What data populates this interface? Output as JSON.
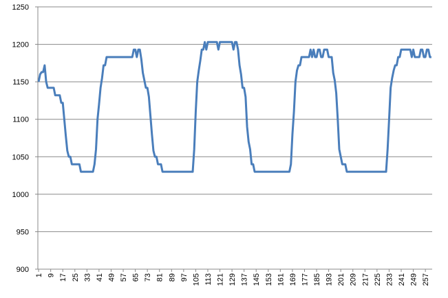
{
  "chart_data": {
    "type": "line",
    "color": "#4a7ebb",
    "grid": true,
    "xlim": [
      0.5,
      261.5
    ],
    "xticks": [
      1,
      9,
      17,
      25,
      33,
      41,
      49,
      57,
      65,
      73,
      81,
      89,
      97,
      105,
      113,
      121,
      129,
      137,
      145,
      153,
      161,
      169,
      177,
      185,
      193,
      201,
      209,
      217,
      225,
      233,
      241,
      249,
      257
    ],
    "ylim": [
      900,
      1250
    ],
    "yticks": [
      900,
      950,
      1000,
      1050,
      1100,
      1150,
      1200,
      1250
    ],
    "x": [
      1,
      2,
      3,
      4,
      5,
      6,
      7,
      8,
      9,
      10,
      11,
      12,
      13,
      14,
      15,
      16,
      17,
      18,
      19,
      20,
      21,
      22,
      23,
      24,
      25,
      26,
      27,
      28,
      29,
      30,
      31,
      32,
      33,
      34,
      35,
      36,
      37,
      38,
      39,
      40,
      41,
      42,
      43,
      44,
      45,
      46,
      47,
      48,
      49,
      50,
      51,
      52,
      53,
      54,
      55,
      56,
      57,
      58,
      59,
      60,
      61,
      62,
      63,
      64,
      65,
      66,
      67,
      68,
      69,
      70,
      71,
      72,
      73,
      74,
      75,
      76,
      77,
      78,
      79,
      80,
      81,
      82,
      83,
      84,
      85,
      86,
      87,
      88,
      89,
      90,
      91,
      92,
      93,
      94,
      95,
      96,
      97,
      98,
      99,
      100,
      101,
      102,
      103,
      104,
      105,
      106,
      107,
      108,
      109,
      110,
      111,
      112,
      113,
      114,
      115,
      116,
      117,
      118,
      119,
      120,
      121,
      122,
      123,
      124,
      125,
      126,
      127,
      128,
      129,
      130,
      131,
      132,
      133,
      134,
      135,
      136,
      137,
      138,
      139,
      140,
      141,
      142,
      143,
      144,
      145,
      146,
      147,
      148,
      149,
      150,
      151,
      152,
      153,
      154,
      155,
      156,
      157,
      158,
      159,
      160,
      161,
      162,
      163,
      164,
      165,
      166,
      167,
      168,
      169,
      170,
      171,
      172,
      173,
      174,
      175,
      176,
      177,
      178,
      179,
      180,
      181,
      182,
      183,
      184,
      185,
      186,
      187,
      188,
      189,
      190,
      191,
      192,
      193,
      194,
      195,
      196,
      197,
      198,
      199,
      200,
      201,
      202,
      203,
      204,
      205,
      206,
      207,
      208,
      209,
      210,
      211,
      212,
      213,
      214,
      215,
      216,
      217,
      218,
      219,
      220,
      221,
      222,
      223,
      224,
      225,
      226,
      227,
      228,
      229,
      230,
      231,
      232,
      233,
      234,
      235,
      236,
      237,
      238,
      239,
      240,
      241,
      242,
      243,
      244,
      245,
      246,
      247,
      248,
      249,
      250,
      251,
      252,
      253,
      254,
      255,
      256,
      257,
      258,
      259,
      260,
      261
    ],
    "values": [
      1150,
      1160,
      1163,
      1163,
      1172,
      1150,
      1142,
      1142,
      1142,
      1142,
      1142,
      1132,
      1132,
      1132,
      1132,
      1122,
      1122,
      1100,
      1078,
      1058,
      1050,
      1050,
      1040,
      1040,
      1040,
      1040,
      1040,
      1040,
      1030,
      1030,
      1030,
      1030,
      1030,
      1030,
      1030,
      1030,
      1030,
      1040,
      1060,
      1100,
      1120,
      1142,
      1155,
      1172,
      1172,
      1183,
      1183,
      1183,
      1183,
      1183,
      1183,
      1183,
      1183,
      1183,
      1183,
      1183,
      1183,
      1183,
      1183,
      1183,
      1183,
      1183,
      1183,
      1193,
      1193,
      1183,
      1193,
      1193,
      1180,
      1162,
      1152,
      1142,
      1142,
      1130,
      1105,
      1080,
      1058,
      1050,
      1050,
      1040,
      1040,
      1040,
      1030,
      1030,
      1030,
      1030,
      1030,
      1030,
      1030,
      1030,
      1030,
      1030,
      1030,
      1030,
      1030,
      1030,
      1030,
      1030,
      1030,
      1030,
      1030,
      1030,
      1030,
      1060,
      1110,
      1150,
      1165,
      1178,
      1193,
      1193,
      1203,
      1193,
      1203,
      1203,
      1203,
      1203,
      1203,
      1203,
      1203,
      1193,
      1203,
      1203,
      1203,
      1203,
      1203,
      1203,
      1203,
      1203,
      1203,
      1193,
      1203,
      1203,
      1193,
      1172,
      1160,
      1142,
      1142,
      1130,
      1090,
      1070,
      1060,
      1040,
      1040,
      1030,
      1030,
      1030,
      1030,
      1030,
      1030,
      1030,
      1030,
      1030,
      1030,
      1030,
      1030,
      1030,
      1030,
      1030,
      1030,
      1030,
      1030,
      1030,
      1030,
      1030,
      1030,
      1030,
      1030,
      1040,
      1080,
      1110,
      1150,
      1165,
      1172,
      1172,
      1183,
      1183,
      1183,
      1183,
      1183,
      1183,
      1193,
      1183,
      1193,
      1183,
      1183,
      1193,
      1193,
      1183,
      1183,
      1193,
      1193,
      1193,
      1183,
      1183,
      1183,
      1162,
      1152,
      1135,
      1100,
      1060,
      1050,
      1040,
      1040,
      1040,
      1030,
      1030,
      1030,
      1030,
      1030,
      1030,
      1030,
      1030,
      1030,
      1030,
      1030,
      1030,
      1030,
      1030,
      1030,
      1030,
      1030,
      1030,
      1030,
      1030,
      1030,
      1030,
      1030,
      1030,
      1030,
      1030,
      1030,
      1060,
      1100,
      1142,
      1155,
      1165,
      1172,
      1172,
      1183,
      1183,
      1193,
      1193,
      1193,
      1193,
      1193,
      1193,
      1193,
      1183,
      1193,
      1183,
      1183,
      1183,
      1183,
      1193,
      1193,
      1183,
      1183,
      1193,
      1193,
      1183,
      1183
    ]
  }
}
